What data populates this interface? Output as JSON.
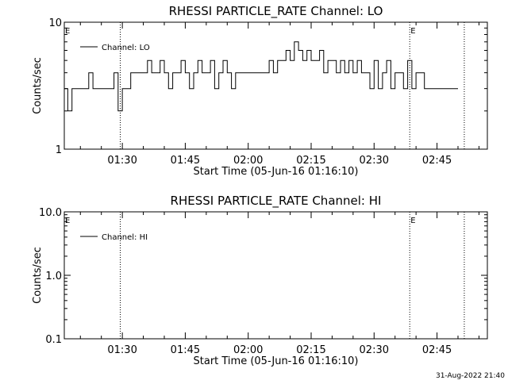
{
  "chart_data": [
    {
      "type": "line",
      "title": "RHESSI PARTICLE_RATE Channel: LO",
      "xlabel": "Start Time (05-Jun-16 01:16:10)",
      "ylabel": "Counts/sec",
      "yscale": "log",
      "ylim": [
        1,
        10
      ],
      "xlim": [
        "01:16:10",
        "02:57:00"
      ],
      "xticks": [
        "01:30",
        "01:45",
        "02:00",
        "02:15",
        "02:30",
        "02:45"
      ],
      "yticks": [
        "1",
        "10"
      ],
      "legend": "top-left",
      "grid": false,
      "series": [
        {
          "name": "Channel: LO",
          "x": [
            "01:16:10",
            "01:17:00",
            "01:18:00",
            "01:19:00",
            "01:20:00",
            "01:21:00",
            "01:22:00",
            "01:23:00",
            "01:24:00",
            "01:25:00",
            "01:26:00",
            "01:27:00",
            "01:28:00",
            "01:29:00",
            "01:30:00",
            "01:31:00",
            "01:32:00",
            "01:33:00",
            "01:34:00",
            "01:35:00",
            "01:36:00",
            "01:37:00",
            "01:38:00",
            "01:39:00",
            "01:40:00",
            "01:41:00",
            "01:42:00",
            "01:43:00",
            "01:44:00",
            "01:45:00",
            "01:46:00",
            "01:47:00",
            "01:48:00",
            "01:49:00",
            "01:50:00",
            "01:51:00",
            "01:52:00",
            "01:53:00",
            "01:54:00",
            "01:55:00",
            "01:56:00",
            "01:57:00",
            "01:58:00",
            "01:59:00",
            "02:00:00",
            "02:01:00",
            "02:02:00",
            "02:03:00",
            "02:04:00",
            "02:05:00",
            "02:06:00",
            "02:07:00",
            "02:08:00",
            "02:09:00",
            "02:10:00",
            "02:11:00",
            "02:12:00",
            "02:13:00",
            "02:14:00",
            "02:15:00",
            "02:16:00",
            "02:17:00",
            "02:18:00",
            "02:19:00",
            "02:20:00",
            "02:21:00",
            "02:22:00",
            "02:23:00",
            "02:24:00",
            "02:25:00",
            "02:26:00",
            "02:27:00",
            "02:28:00",
            "02:29:00",
            "02:30:00",
            "02:31:00",
            "02:32:00",
            "02:33:00",
            "02:34:00",
            "02:35:00",
            "02:36:00",
            "02:37:00",
            "02:38:00",
            "02:39:00",
            "02:40:00",
            "02:41:00",
            "02:42:00",
            "02:43:00",
            "02:44:00",
            "02:45:00",
            "02:46:00",
            "02:47:00",
            "02:48:00",
            "02:49:00"
          ],
          "values": [
            3,
            2,
            3,
            3,
            3,
            3,
            4,
            3,
            3,
            3,
            3,
            3,
            4,
            2,
            3,
            3,
            4,
            4,
            4,
            4,
            5,
            4,
            4,
            5,
            4,
            3,
            4,
            4,
            5,
            4,
            3,
            4,
            5,
            4,
            4,
            5,
            3,
            4,
            5,
            4,
            3,
            4,
            4,
            4,
            4,
            4,
            4,
            4,
            4,
            5,
            4,
            5,
            5,
            6,
            5,
            7,
            6,
            5,
            6,
            5,
            5,
            6,
            4,
            5,
            5,
            4,
            5,
            4,
            5,
            4,
            5,
            4,
            4,
            3,
            5,
            3,
            4,
            5,
            3,
            4,
            4,
            3,
            5,
            3,
            4,
            4,
            3,
            3,
            3,
            3,
            3,
            3,
            3,
            3
          ]
        }
      ],
      "markers": [
        {
          "x": "01:29:30",
          "label": ""
        },
        {
          "x": "02:38:30",
          "label": "E"
        },
        {
          "x": "02:51:30",
          "label": ""
        }
      ],
      "corner_label": "E"
    },
    {
      "type": "line",
      "title": "RHESSI PARTICLE_RATE Channel: HI",
      "xlabel": "Start Time (05-Jun-16 01:16:10)",
      "ylabel": "Counts/sec",
      "yscale": "log",
      "ylim": [
        0.1,
        10.0
      ],
      "xlim": [
        "01:16:10",
        "02:57:00"
      ],
      "xticks": [
        "01:30",
        "01:45",
        "02:00",
        "02:15",
        "02:30",
        "02:45"
      ],
      "yticks": [
        "0.1",
        "1.0",
        "10.0"
      ],
      "legend": "top-left",
      "grid": false,
      "series": [
        {
          "name": "Channel: HI",
          "x": [],
          "values": []
        }
      ],
      "markers": [
        {
          "x": "01:29:30",
          "label": ""
        },
        {
          "x": "02:38:30",
          "label": "E"
        },
        {
          "x": "02:51:30",
          "label": ""
        }
      ],
      "corner_label": "E"
    }
  ],
  "timestamp": "31-Aug-2022 21:40"
}
